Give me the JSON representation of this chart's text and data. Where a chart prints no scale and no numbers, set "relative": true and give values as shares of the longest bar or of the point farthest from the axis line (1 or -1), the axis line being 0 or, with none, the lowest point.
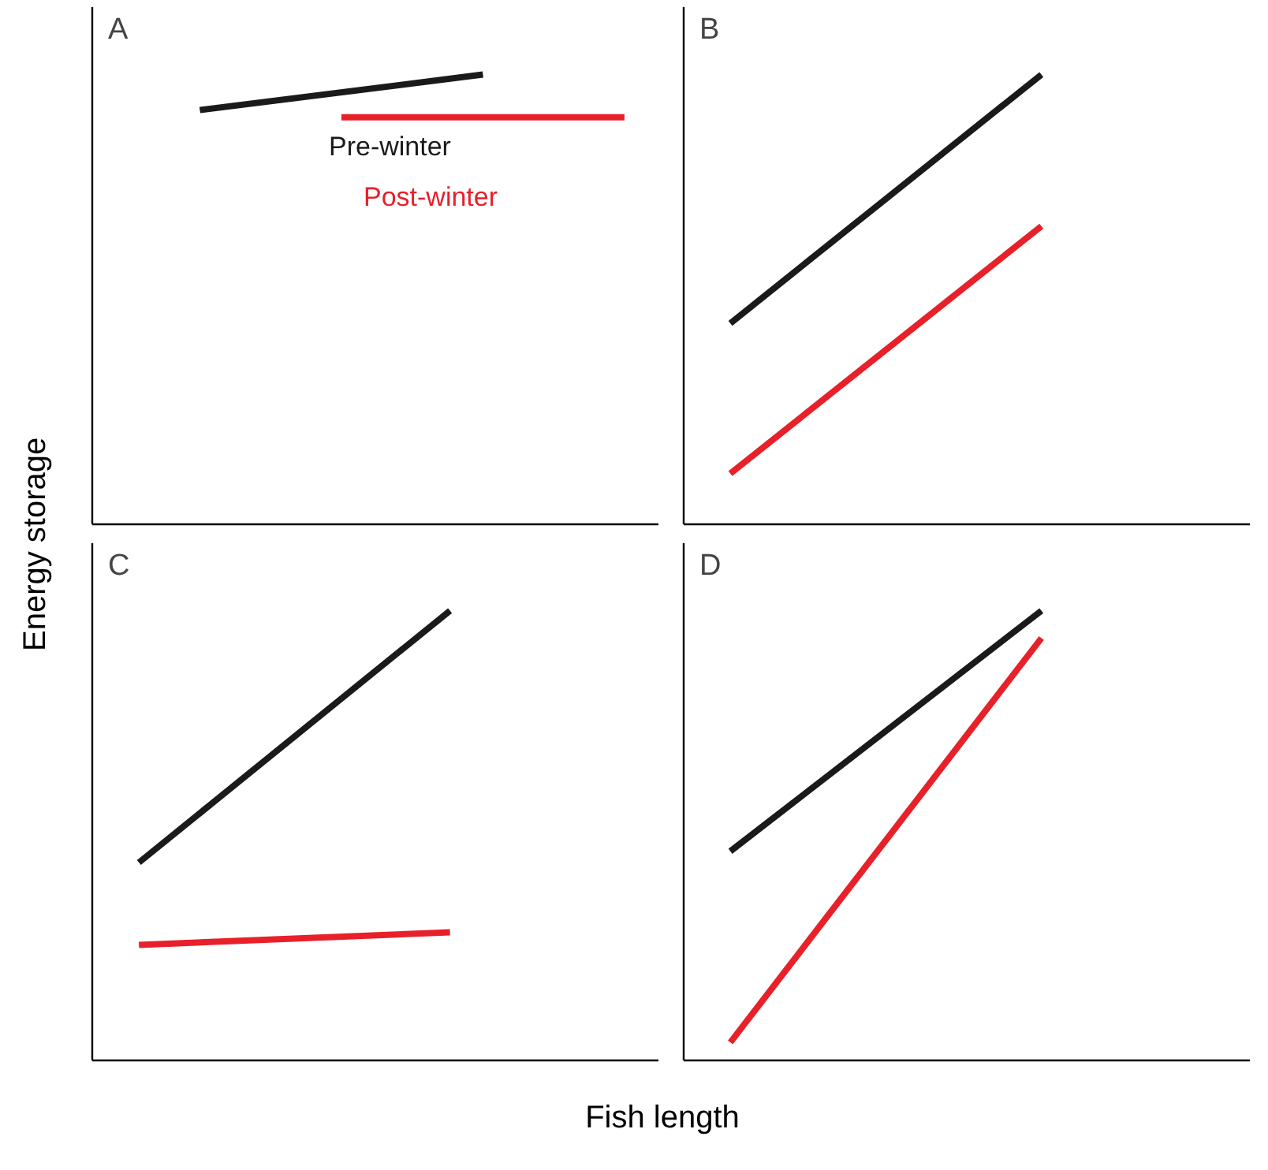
{
  "chart_data": [
    {
      "type": "line",
      "title": "A",
      "relative": true,
      "xlabel": "Fish length",
      "ylabel": "Energy storage",
      "tick_labels": false,
      "marker": "none",
      "line_style": "solid",
      "categories": [
        null,
        null,
        null,
        null
      ],
      "series": [
        {
          "name": "Pre-winter",
          "color": "#1a1a1a",
          "values": [
            0.921,
            null,
            1,
            null
          ]
        },
        {
          "name": "Post-winter",
          "color": "#e8202a",
          "values": [
            null,
            0.905,
            null,
            0.905
          ]
        }
      ]
    },
    {
      "type": "line",
      "title": "B",
      "relative": true,
      "tick_labels": false,
      "marker": "none",
      "line_style": "solid",
      "categories": [
        null,
        null
      ],
      "series": [
        {
          "color": "#1a1a1a",
          "values": [
            0.447,
            1
          ]
        },
        {
          "color": "#e8202a",
          "values": [
            0.113,
            0.663
          ]
        }
      ]
    },
    {
      "type": "line",
      "title": "C",
      "relative": true,
      "tick_labels": false,
      "marker": "none",
      "line_style": "solid",
      "categories": [
        null,
        null
      ],
      "series": [
        {
          "color": "#1a1a1a",
          "values": [
            0.44,
            1
          ]
        },
        {
          "color": "#e8202a",
          "values": [
            0.257,
            0.285
          ]
        }
      ]
    },
    {
      "type": "line",
      "title": "D",
      "relative": true,
      "tick_labels": false,
      "marker": "none",
      "line_style": "solid",
      "categories": [
        null,
        null
      ],
      "series": [
        {
          "color": "#1a1a1a",
          "values": [
            0.465,
            1
          ]
        },
        {
          "color": "#e8202a",
          "values": [
            0.04,
            0.939
          ]
        }
      ]
    }
  ]
}
